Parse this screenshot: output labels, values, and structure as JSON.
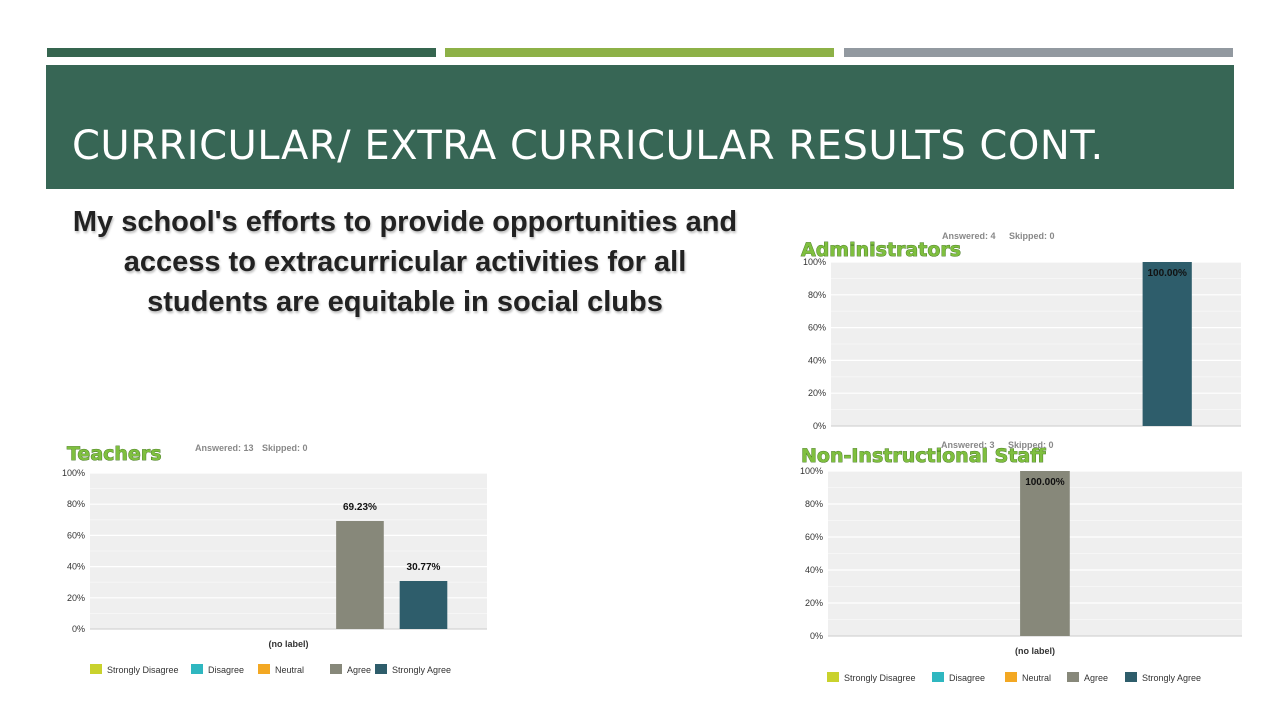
{
  "slide": {
    "title": "CURRICULAR/ EXTRA CURRICULAR RESULTS CONT.",
    "question": "My school's efforts to provide opportunities and access to extracurricular activities for all students are equitable in social clubs",
    "colors": {
      "title_band": "#376655",
      "strip_dark": "#35654f",
      "strip_green": "#8db147",
      "strip_gray": "#9299a0",
      "group_label": "#7fbf3f"
    }
  },
  "chart_data": [
    {
      "type": "bar",
      "group_label": "Teachers",
      "answered": "Answered: 13",
      "skipped": "Skipped: 0",
      "categories": [
        "(no label)"
      ],
      "series": [
        {
          "name": "Strongly Disagree",
          "color": "#c9d22d",
          "values": [
            0
          ]
        },
        {
          "name": "Disagree",
          "color": "#2fb7c0",
          "values": [
            0
          ]
        },
        {
          "name": "Neutral",
          "color": "#f3a823",
          "values": [
            0
          ]
        },
        {
          "name": "Agree",
          "color": "#87887a",
          "values": [
            69.23
          ]
        },
        {
          "name": "Strongly Agree",
          "color": "#2e5d6b",
          "values": [
            30.77
          ]
        }
      ],
      "data_labels": [
        "",
        "",
        "",
        "69.23%",
        "30.77%"
      ],
      "yticks": [
        "0%",
        "20%",
        "40%",
        "60%",
        "80%",
        "100%"
      ],
      "ylim": [
        0,
        100
      ],
      "legend": "bottom"
    },
    {
      "type": "bar",
      "group_label": "Administrators",
      "answered": "Answered: 4",
      "skipped": "Skipped: 0",
      "categories": [
        ""
      ],
      "series": [
        {
          "name": "Strongly Agree",
          "color": "#2e5d6b",
          "values": [
            100
          ]
        }
      ],
      "data_labels": [
        "100.00%"
      ],
      "yticks": [
        "0%",
        "20%",
        "40%",
        "60%",
        "80%",
        "100%"
      ],
      "ylim": [
        0,
        100
      ]
    },
    {
      "type": "bar",
      "group_label": "Non-Instructional Staff",
      "answered": "Answered: 3",
      "skipped": "Skipped: 0",
      "categories": [
        "(no label)"
      ],
      "series": [
        {
          "name": "Strongly Disagree",
          "color": "#c9d22d",
          "values": [
            0
          ]
        },
        {
          "name": "Disagree",
          "color": "#2fb7c0",
          "values": [
            0
          ]
        },
        {
          "name": "Neutral",
          "color": "#f3a823",
          "values": [
            0
          ]
        },
        {
          "name": "Agree",
          "color": "#87887a",
          "values": [
            100
          ]
        },
        {
          "name": "Strongly Agree",
          "color": "#2e5d6b",
          "values": [
            0
          ]
        }
      ],
      "data_labels": [
        "",
        "",
        "",
        "100.00%",
        ""
      ],
      "yticks": [
        "0%",
        "20%",
        "40%",
        "60%",
        "80%",
        "100%"
      ],
      "ylim": [
        0,
        100
      ],
      "legend": "bottom"
    }
  ]
}
